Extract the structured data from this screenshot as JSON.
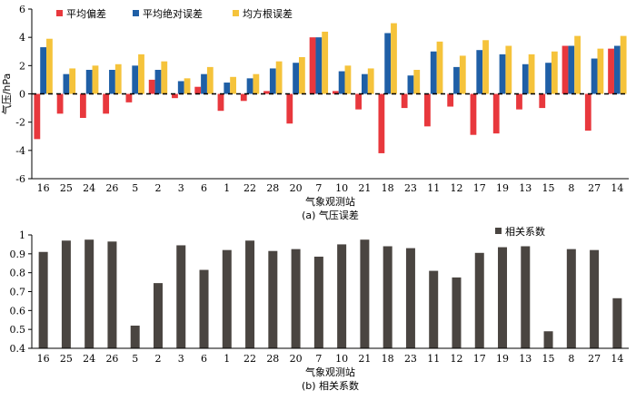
{
  "chart_data": [
    {
      "type": "bar",
      "caption": "(a) 气压误差",
      "xlabel": "气象观测站",
      "ylabel": "气压/hPa",
      "ylim": [
        -6,
        6
      ],
      "yticks": [
        -6,
        -4,
        -2,
        0,
        2,
        4,
        6
      ],
      "reference_line": {
        "y": 0,
        "style": "dashed"
      },
      "legend_position": "top-left",
      "categories": [
        "16",
        "25",
        "24",
        "26",
        "5",
        "2",
        "3",
        "6",
        "1",
        "22",
        "28",
        "20",
        "7",
        "10",
        "21",
        "18",
        "23",
        "11",
        "12",
        "17",
        "19",
        "13",
        "15",
        "8",
        "27",
        "14"
      ],
      "series": [
        {
          "name": "平均偏差",
          "color": "#e8383d",
          "values": [
            -3.2,
            -1.4,
            -1.7,
            -1.4,
            -0.6,
            1.0,
            -0.3,
            0.5,
            -1.2,
            -0.5,
            0.2,
            -2.1,
            4.0,
            0.2,
            -1.1,
            -4.2,
            -1.0,
            -2.3,
            -0.9,
            -2.9,
            -2.8,
            -1.1,
            -1.0,
            3.4,
            -2.6,
            3.2
          ]
        },
        {
          "name": "平均绝对误差",
          "color": "#1f5fa6",
          "values": [
            3.3,
            1.4,
            1.7,
            1.7,
            2.0,
            1.7,
            0.9,
            1.4,
            0.8,
            1.1,
            1.8,
            2.2,
            4.0,
            1.6,
            1.4,
            4.3,
            1.3,
            3.0,
            1.9,
            3.1,
            2.8,
            2.1,
            2.2,
            3.4,
            2.5,
            3.4
          ]
        },
        {
          "name": "均方根误差",
          "color": "#f5c33b",
          "values": [
            3.9,
            1.8,
            2.0,
            2.1,
            2.8,
            2.3,
            1.1,
            1.9,
            1.2,
            1.4,
            2.3,
            2.6,
            4.4,
            2.0,
            1.8,
            5.0,
            1.7,
            3.7,
            2.7,
            3.8,
            3.4,
            2.8,
            3.0,
            4.1,
            3.2,
            4.1
          ]
        }
      ]
    },
    {
      "type": "bar",
      "caption": "(b) 相关系数",
      "xlabel": "气象观测站",
      "ylabel": "",
      "ylim": [
        0.4,
        1.0
      ],
      "yticks": [
        0.4,
        0.5,
        0.6,
        0.7,
        0.8,
        0.9,
        1.0
      ],
      "legend_position": "top-right",
      "categories": [
        "16",
        "25",
        "24",
        "26",
        "5",
        "2",
        "3",
        "6",
        "1",
        "22",
        "28",
        "20",
        "7",
        "10",
        "21",
        "18",
        "23",
        "11",
        "12",
        "17",
        "19",
        "13",
        "15",
        "8",
        "27",
        "14"
      ],
      "series": [
        {
          "name": "相关系数",
          "color": "#4a4541",
          "values": [
            0.91,
            0.97,
            0.975,
            0.965,
            0.52,
            0.745,
            0.945,
            0.815,
            0.92,
            0.97,
            0.915,
            0.925,
            0.885,
            0.95,
            0.975,
            0.94,
            0.93,
            0.81,
            0.775,
            0.905,
            0.935,
            0.94,
            0.49,
            0.925,
            0.92,
            0.665
          ]
        }
      ]
    }
  ]
}
